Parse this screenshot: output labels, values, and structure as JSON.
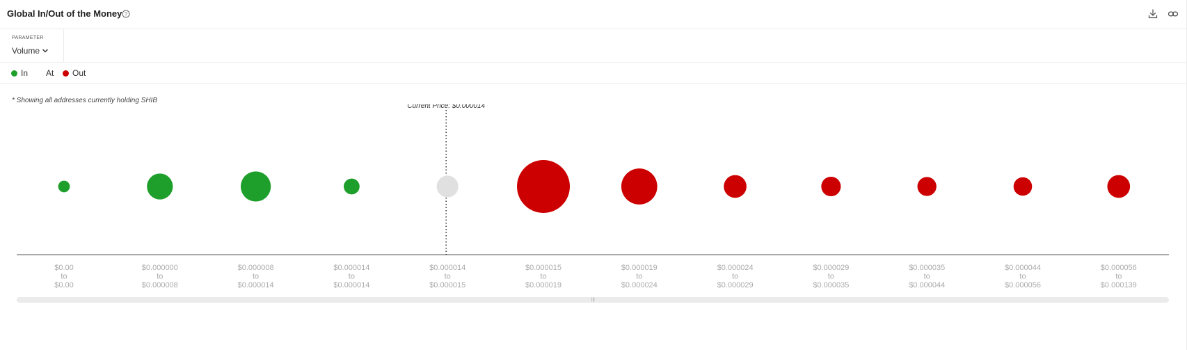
{
  "header": {
    "title": "Global In/Out of the Money",
    "icons": [
      "help-icon",
      "download-icon",
      "link-icon"
    ]
  },
  "parameter": {
    "label": "PARAMETER",
    "value": "Volume"
  },
  "legend": {
    "items": [
      {
        "label": "In",
        "color": "#1e9e2a"
      },
      {
        "label": "At",
        "color": ""
      },
      {
        "label": "Out",
        "color": "#cc0000"
      }
    ]
  },
  "note": "* Showing all addresses currently holding SHIB",
  "chart_data": {
    "type": "bubble",
    "current_price_label": "Current Price: $0.000014",
    "colors": {
      "in": "#1e9e2a",
      "at": "#e0e0e0",
      "out": "#cc0000"
    },
    "buckets": [
      {
        "from": "$0.00",
        "to": "$0.00",
        "status": "in",
        "relative_size": 0.22
      },
      {
        "from": "$0.000000",
        "to": "$0.000008",
        "status": "in",
        "relative_size": 0.49
      },
      {
        "from": "$0.000008",
        "to": "$0.000014",
        "status": "in",
        "relative_size": 0.57
      },
      {
        "from": "$0.000014",
        "to": "$0.000014",
        "status": "in",
        "relative_size": 0.3
      },
      {
        "from": "$0.000014",
        "to": "$0.000015",
        "status": "at",
        "relative_size": 0.41
      },
      {
        "from": "$0.000015",
        "to": "$0.000019",
        "status": "out",
        "relative_size": 1.0
      },
      {
        "from": "$0.000019",
        "to": "$0.000024",
        "status": "out",
        "relative_size": 0.68
      },
      {
        "from": "$0.000024",
        "to": "$0.000029",
        "status": "out",
        "relative_size": 0.43
      },
      {
        "from": "$0.000029",
        "to": "$0.000035",
        "status": "out",
        "relative_size": 0.37
      },
      {
        "from": "$0.000035",
        "to": "$0.000044",
        "status": "out",
        "relative_size": 0.36
      },
      {
        "from": "$0.000044",
        "to": "$0.000056",
        "status": "out",
        "relative_size": 0.35
      },
      {
        "from": "$0.000056",
        "to": "$0.000139",
        "status": "out",
        "relative_size": 0.43
      }
    ],
    "range_connector": "to",
    "current_price_bucket_index": 4
  }
}
